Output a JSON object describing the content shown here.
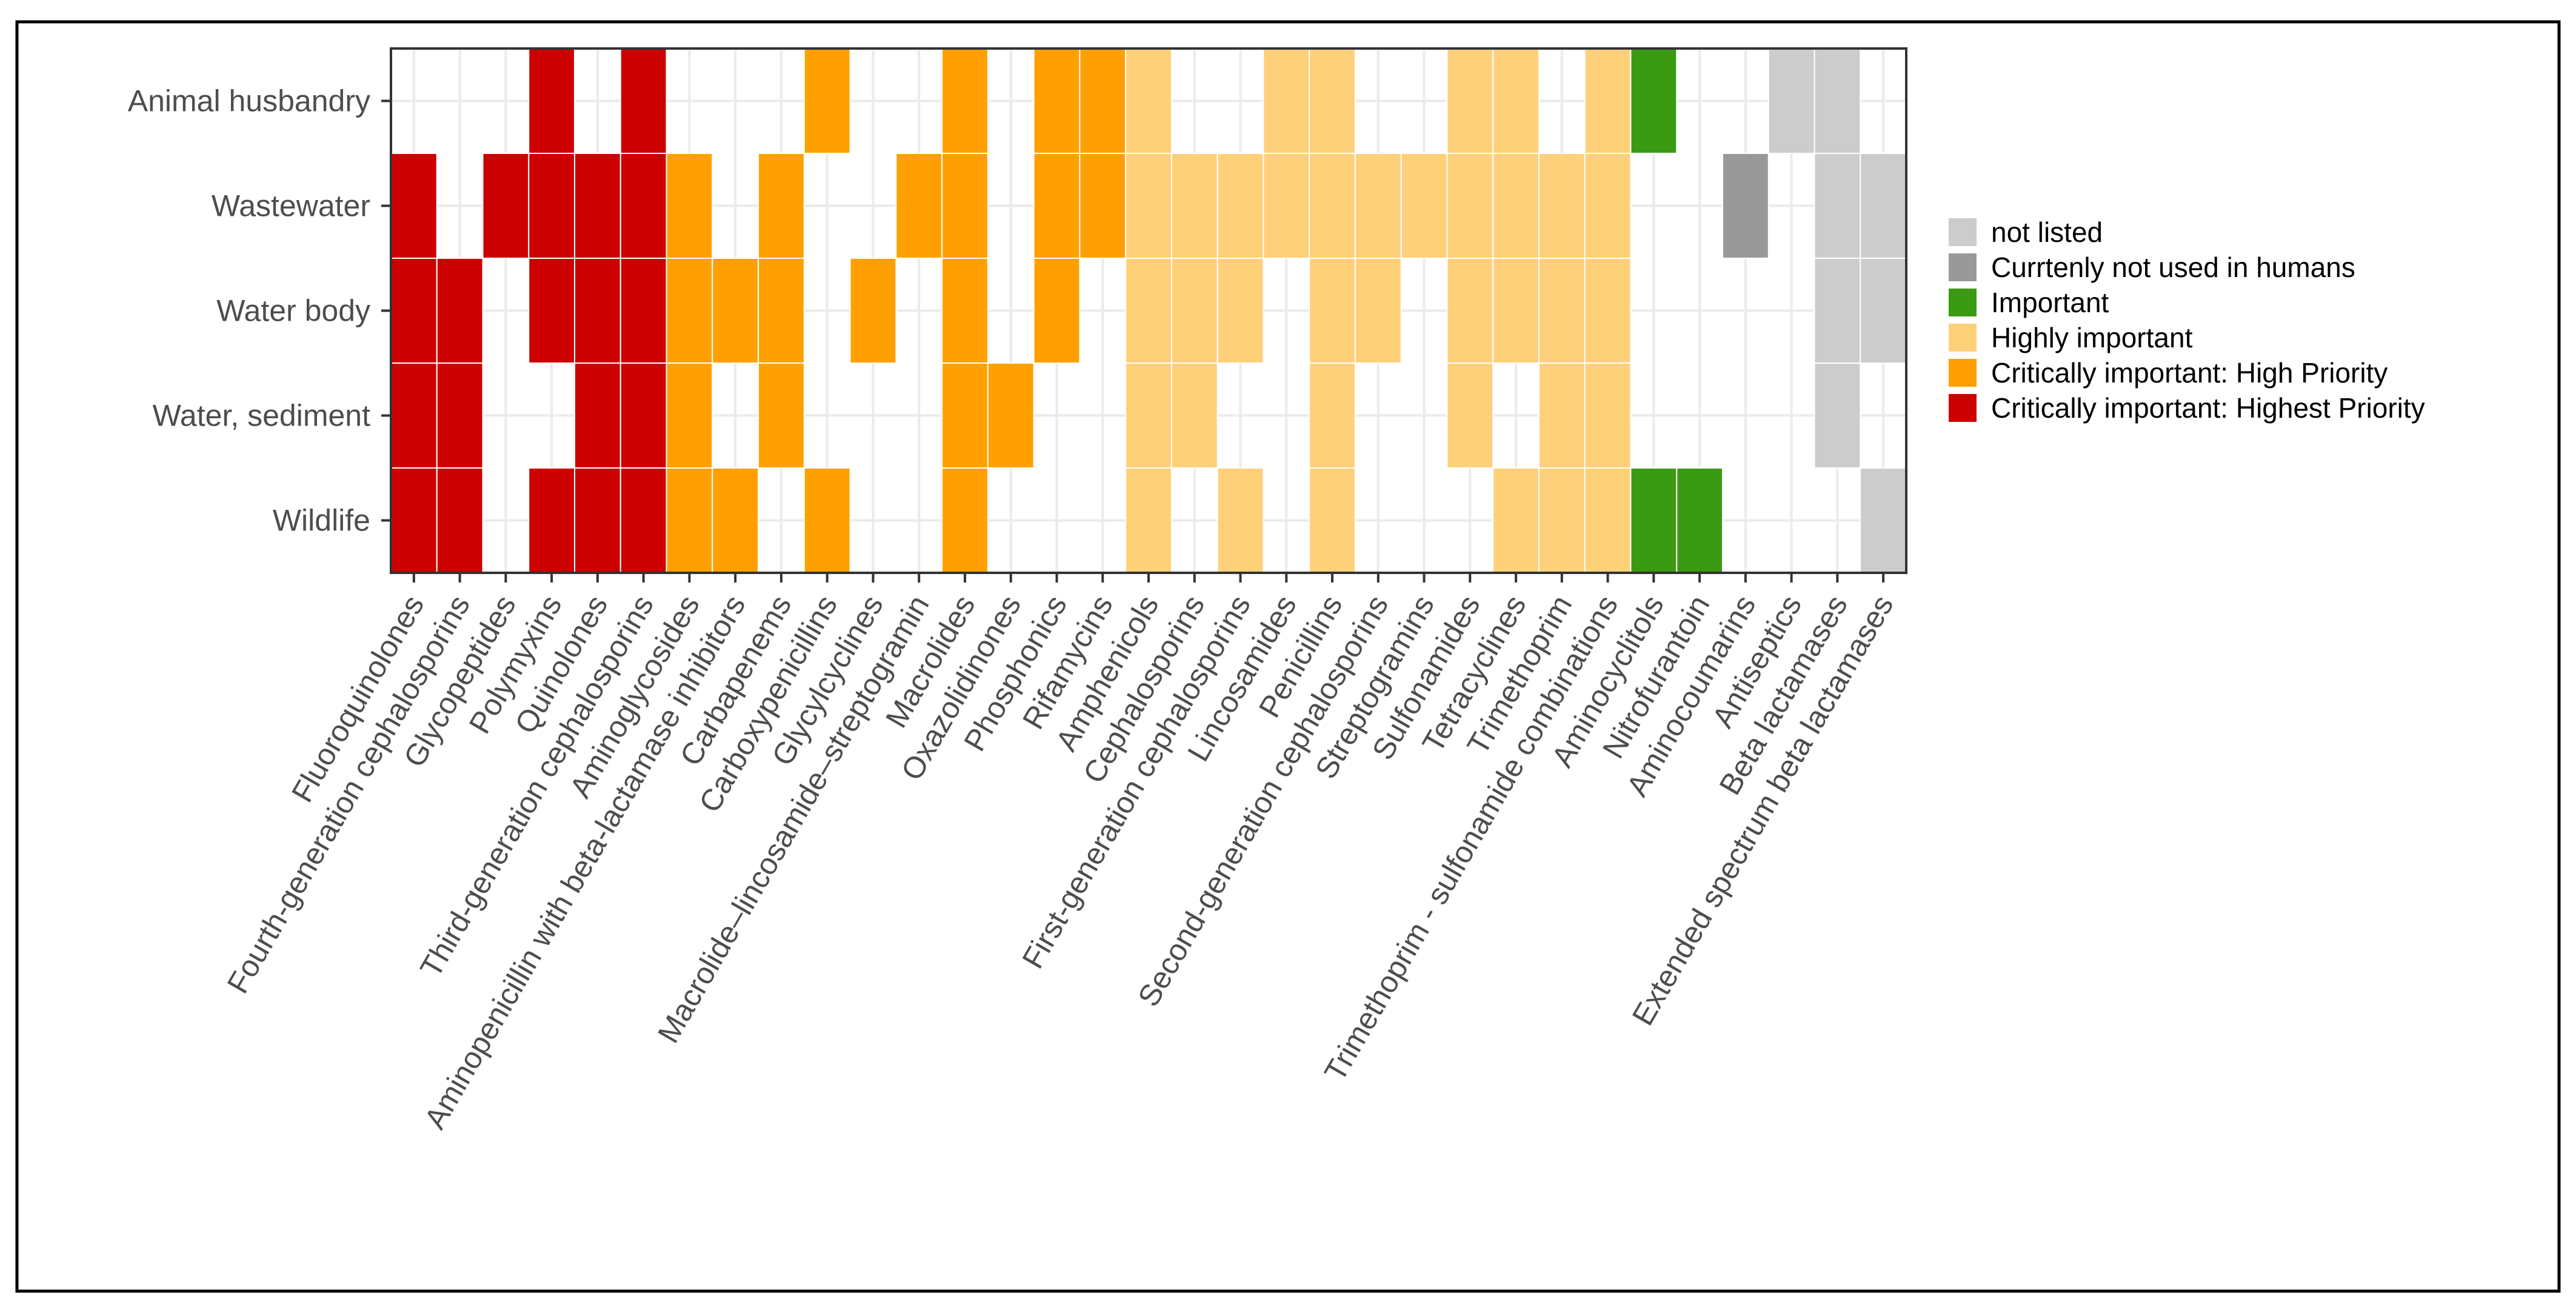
{
  "chart_data": {
    "type": "heatmap",
    "title": "",
    "xlabel": "",
    "ylabel": "",
    "rows": [
      "Animal husbandry",
      "Wastewater",
      "Water body",
      "Water, sediment",
      "Wildlife"
    ],
    "columns": [
      "Fluoroquinolones",
      "Fourth-generation cephalosporins",
      "Glycopeptides",
      "Polymyxins",
      "Quinolones",
      "Third-generation cephalosporins",
      "Aminoglycosides",
      "Aminopenicillin with beta-lactamase inhibitors",
      "Carbapenems",
      "Carboxypenicillins",
      "Glycylcyclines",
      "Macrolide–lincosamide–streptogramin",
      "Macrolides",
      "Oxazolidinones",
      "Phosphonics",
      "Rifamycins",
      "Amphenicols",
      "Cephalosporins",
      "First-generation cephalosporins",
      "Lincosamides",
      "Penicillins",
      "Second-generation cephalosporins",
      "Streptogramins",
      "Sulfonamides",
      "Tetracyclines",
      "Trimethoprim",
      "Trimethoprim - sulfonamide combinations",
      "Aminocyclitols",
      "Nitrofurantoin",
      "Aminocoumarins",
      "Antiseptics",
      "Beta lactamases",
      "Extended spectrum beta lactamases"
    ],
    "categories": [
      "not listed",
      "Currtenly not used in humans",
      "Important",
      "Highly important",
      "Critically important: High Priority",
      "Critically important: Highest Priority"
    ],
    "colors": {
      "not listed": "#cccccc",
      "Currtenly not used in humans": "#999999",
      "Important": "#3a9a12",
      "Highly important": "#ffd07a",
      "Critically important: High Priority": "#ffa000",
      "Critically important: Highest Priority": "#cc0000"
    },
    "cells": [
      {
        "row": "Animal husbandry",
        "column": "Polymyxins",
        "category": "Critically important: Highest Priority"
      },
      {
        "row": "Animal husbandry",
        "column": "Third-generation cephalosporins",
        "category": "Critically important: Highest Priority"
      },
      {
        "row": "Animal husbandry",
        "column": "Carboxypenicillins",
        "category": "Critically important: High Priority"
      },
      {
        "row": "Animal husbandry",
        "column": "Macrolides",
        "category": "Critically important: High Priority"
      },
      {
        "row": "Animal husbandry",
        "column": "Phosphonics",
        "category": "Critically important: High Priority"
      },
      {
        "row": "Animal husbandry",
        "column": "Rifamycins",
        "category": "Critically important: High Priority"
      },
      {
        "row": "Animal husbandry",
        "column": "Amphenicols",
        "category": "Highly important"
      },
      {
        "row": "Animal husbandry",
        "column": "Lincosamides",
        "category": "Highly important"
      },
      {
        "row": "Animal husbandry",
        "column": "Penicillins",
        "category": "Highly important"
      },
      {
        "row": "Animal husbandry",
        "column": "Sulfonamides",
        "category": "Highly important"
      },
      {
        "row": "Animal husbandry",
        "column": "Tetracyclines",
        "category": "Highly important"
      },
      {
        "row": "Animal husbandry",
        "column": "Trimethoprim - sulfonamide combinations",
        "category": "Highly important"
      },
      {
        "row": "Animal husbandry",
        "column": "Aminocyclitols",
        "category": "Important"
      },
      {
        "row": "Animal husbandry",
        "column": "Antiseptics",
        "category": "not listed"
      },
      {
        "row": "Animal husbandry",
        "column": "Beta lactamases",
        "category": "not listed"
      },
      {
        "row": "Wastewater",
        "column": "Fluoroquinolones",
        "category": "Critically important: Highest Priority"
      },
      {
        "row": "Wastewater",
        "column": "Glycopeptides",
        "category": "Critically important: Highest Priority"
      },
      {
        "row": "Wastewater",
        "column": "Polymyxins",
        "category": "Critically important: Highest Priority"
      },
      {
        "row": "Wastewater",
        "column": "Quinolones",
        "category": "Critically important: Highest Priority"
      },
      {
        "row": "Wastewater",
        "column": "Third-generation cephalosporins",
        "category": "Critically important: Highest Priority"
      },
      {
        "row": "Wastewater",
        "column": "Aminoglycosides",
        "category": "Critically important: High Priority"
      },
      {
        "row": "Wastewater",
        "column": "Carbapenems",
        "category": "Critically important: High Priority"
      },
      {
        "row": "Wastewater",
        "column": "Macrolide–lincosamide–streptogramin",
        "category": "Critically important: High Priority"
      },
      {
        "row": "Wastewater",
        "column": "Macrolides",
        "category": "Critically important: High Priority"
      },
      {
        "row": "Wastewater",
        "column": "Phosphonics",
        "category": "Critically important: High Priority"
      },
      {
        "row": "Wastewater",
        "column": "Rifamycins",
        "category": "Critically important: High Priority"
      },
      {
        "row": "Wastewater",
        "column": "Amphenicols",
        "category": "Highly important"
      },
      {
        "row": "Wastewater",
        "column": "Cephalosporins",
        "category": "Highly important"
      },
      {
        "row": "Wastewater",
        "column": "First-generation cephalosporins",
        "category": "Highly important"
      },
      {
        "row": "Wastewater",
        "column": "Lincosamides",
        "category": "Highly important"
      },
      {
        "row": "Wastewater",
        "column": "Penicillins",
        "category": "Highly important"
      },
      {
        "row": "Wastewater",
        "column": "Second-generation cephalosporins",
        "category": "Highly important"
      },
      {
        "row": "Wastewater",
        "column": "Streptogramins",
        "category": "Highly important"
      },
      {
        "row": "Wastewater",
        "column": "Sulfonamides",
        "category": "Highly important"
      },
      {
        "row": "Wastewater",
        "column": "Tetracyclines",
        "category": "Highly important"
      },
      {
        "row": "Wastewater",
        "column": "Trimethoprim",
        "category": "Highly important"
      },
      {
        "row": "Wastewater",
        "column": "Trimethoprim - sulfonamide combinations",
        "category": "Highly important"
      },
      {
        "row": "Wastewater",
        "column": "Aminocoumarins",
        "category": "Currtenly not used in humans"
      },
      {
        "row": "Wastewater",
        "column": "Beta lactamases",
        "category": "not listed"
      },
      {
        "row": "Wastewater",
        "column": "Extended spectrum beta lactamases",
        "category": "not listed"
      },
      {
        "row": "Water body",
        "column": "Fluoroquinolones",
        "category": "Critically important: Highest Priority"
      },
      {
        "row": "Water body",
        "column": "Fourth-generation cephalosporins",
        "category": "Critically important: Highest Priority"
      },
      {
        "row": "Water body",
        "column": "Polymyxins",
        "category": "Critically important: Highest Priority"
      },
      {
        "row": "Water body",
        "column": "Quinolones",
        "category": "Critically important: Highest Priority"
      },
      {
        "row": "Water body",
        "column": "Third-generation cephalosporins",
        "category": "Critically important: Highest Priority"
      },
      {
        "row": "Water body",
        "column": "Aminoglycosides",
        "category": "Critically important: High Priority"
      },
      {
        "row": "Water body",
        "column": "Aminopenicillin with beta-lactamase inhibitors",
        "category": "Critically important: High Priority"
      },
      {
        "row": "Water body",
        "column": "Carbapenems",
        "category": "Critically important: High Priority"
      },
      {
        "row": "Water body",
        "column": "Glycylcyclines",
        "category": "Critically important: High Priority"
      },
      {
        "row": "Water body",
        "column": "Macrolides",
        "category": "Critically important: High Priority"
      },
      {
        "row": "Water body",
        "column": "Phosphonics",
        "category": "Critically important: High Priority"
      },
      {
        "row": "Water body",
        "column": "Amphenicols",
        "category": "Highly important"
      },
      {
        "row": "Water body",
        "column": "Cephalosporins",
        "category": "Highly important"
      },
      {
        "row": "Water body",
        "column": "First-generation cephalosporins",
        "category": "Highly important"
      },
      {
        "row": "Water body",
        "column": "Penicillins",
        "category": "Highly important"
      },
      {
        "row": "Water body",
        "column": "Second-generation cephalosporins",
        "category": "Highly important"
      },
      {
        "row": "Water body",
        "column": "Sulfonamides",
        "category": "Highly important"
      },
      {
        "row": "Water body",
        "column": "Tetracyclines",
        "category": "Highly important"
      },
      {
        "row": "Water body",
        "column": "Trimethoprim",
        "category": "Highly important"
      },
      {
        "row": "Water body",
        "column": "Trimethoprim - sulfonamide combinations",
        "category": "Highly important"
      },
      {
        "row": "Water body",
        "column": "Beta lactamases",
        "category": "not listed"
      },
      {
        "row": "Water body",
        "column": "Extended spectrum beta lactamases",
        "category": "not listed"
      },
      {
        "row": "Water, sediment",
        "column": "Fluoroquinolones",
        "category": "Critically important: Highest Priority"
      },
      {
        "row": "Water, sediment",
        "column": "Fourth-generation cephalosporins",
        "category": "Critically important: Highest Priority"
      },
      {
        "row": "Water, sediment",
        "column": "Quinolones",
        "category": "Critically important: Highest Priority"
      },
      {
        "row": "Water, sediment",
        "column": "Third-generation cephalosporins",
        "category": "Critically important: Highest Priority"
      },
      {
        "row": "Water, sediment",
        "column": "Aminoglycosides",
        "category": "Critically important: High Priority"
      },
      {
        "row": "Water, sediment",
        "column": "Carbapenems",
        "category": "Critically important: High Priority"
      },
      {
        "row": "Water, sediment",
        "column": "Macrolides",
        "category": "Critically important: High Priority"
      },
      {
        "row": "Water, sediment",
        "column": "Oxazolidinones",
        "category": "Critically important: High Priority"
      },
      {
        "row": "Water, sediment",
        "column": "Amphenicols",
        "category": "Highly important"
      },
      {
        "row": "Water, sediment",
        "column": "Cephalosporins",
        "category": "Highly important"
      },
      {
        "row": "Water, sediment",
        "column": "Penicillins",
        "category": "Highly important"
      },
      {
        "row": "Water, sediment",
        "column": "Sulfonamides",
        "category": "Highly important"
      },
      {
        "row": "Water, sediment",
        "column": "Trimethoprim",
        "category": "Highly important"
      },
      {
        "row": "Water, sediment",
        "column": "Trimethoprim - sulfonamide combinations",
        "category": "Highly important"
      },
      {
        "row": "Water, sediment",
        "column": "Beta lactamases",
        "category": "not listed"
      },
      {
        "row": "Wildlife",
        "column": "Fluoroquinolones",
        "category": "Critically important: Highest Priority"
      },
      {
        "row": "Wildlife",
        "column": "Fourth-generation cephalosporins",
        "category": "Critically important: Highest Priority"
      },
      {
        "row": "Wildlife",
        "column": "Polymyxins",
        "category": "Critically important: Highest Priority"
      },
      {
        "row": "Wildlife",
        "column": "Quinolones",
        "category": "Critically important: Highest Priority"
      },
      {
        "row": "Wildlife",
        "column": "Third-generation cephalosporins",
        "category": "Critically important: Highest Priority"
      },
      {
        "row": "Wildlife",
        "column": "Aminoglycosides",
        "category": "Critically important: High Priority"
      },
      {
        "row": "Wildlife",
        "column": "Aminopenicillin with beta-lactamase inhibitors",
        "category": "Critically important: High Priority"
      },
      {
        "row": "Wildlife",
        "column": "Carboxypenicillins",
        "category": "Critically important: High Priority"
      },
      {
        "row": "Wildlife",
        "column": "Macrolides",
        "category": "Critically important: High Priority"
      },
      {
        "row": "Wildlife",
        "column": "Amphenicols",
        "category": "Highly important"
      },
      {
        "row": "Wildlife",
        "column": "First-generation cephalosporins",
        "category": "Highly important"
      },
      {
        "row": "Wildlife",
        "column": "Penicillins",
        "category": "Highly important"
      },
      {
        "row": "Wildlife",
        "column": "Tetracyclines",
        "category": "Highly important"
      },
      {
        "row": "Wildlife",
        "column": "Trimethoprim",
        "category": "Highly important"
      },
      {
        "row": "Wildlife",
        "column": "Trimethoprim - sulfonamide combinations",
        "category": "Highly important"
      },
      {
        "row": "Wildlife",
        "column": "Aminocyclitols",
        "category": "Important"
      },
      {
        "row": "Wildlife",
        "column": "Nitrofurantoin",
        "category": "Important"
      },
      {
        "row": "Wildlife",
        "column": "Extended spectrum beta lactamases",
        "category": "not listed"
      }
    ],
    "grid": true,
    "legend": "right"
  }
}
